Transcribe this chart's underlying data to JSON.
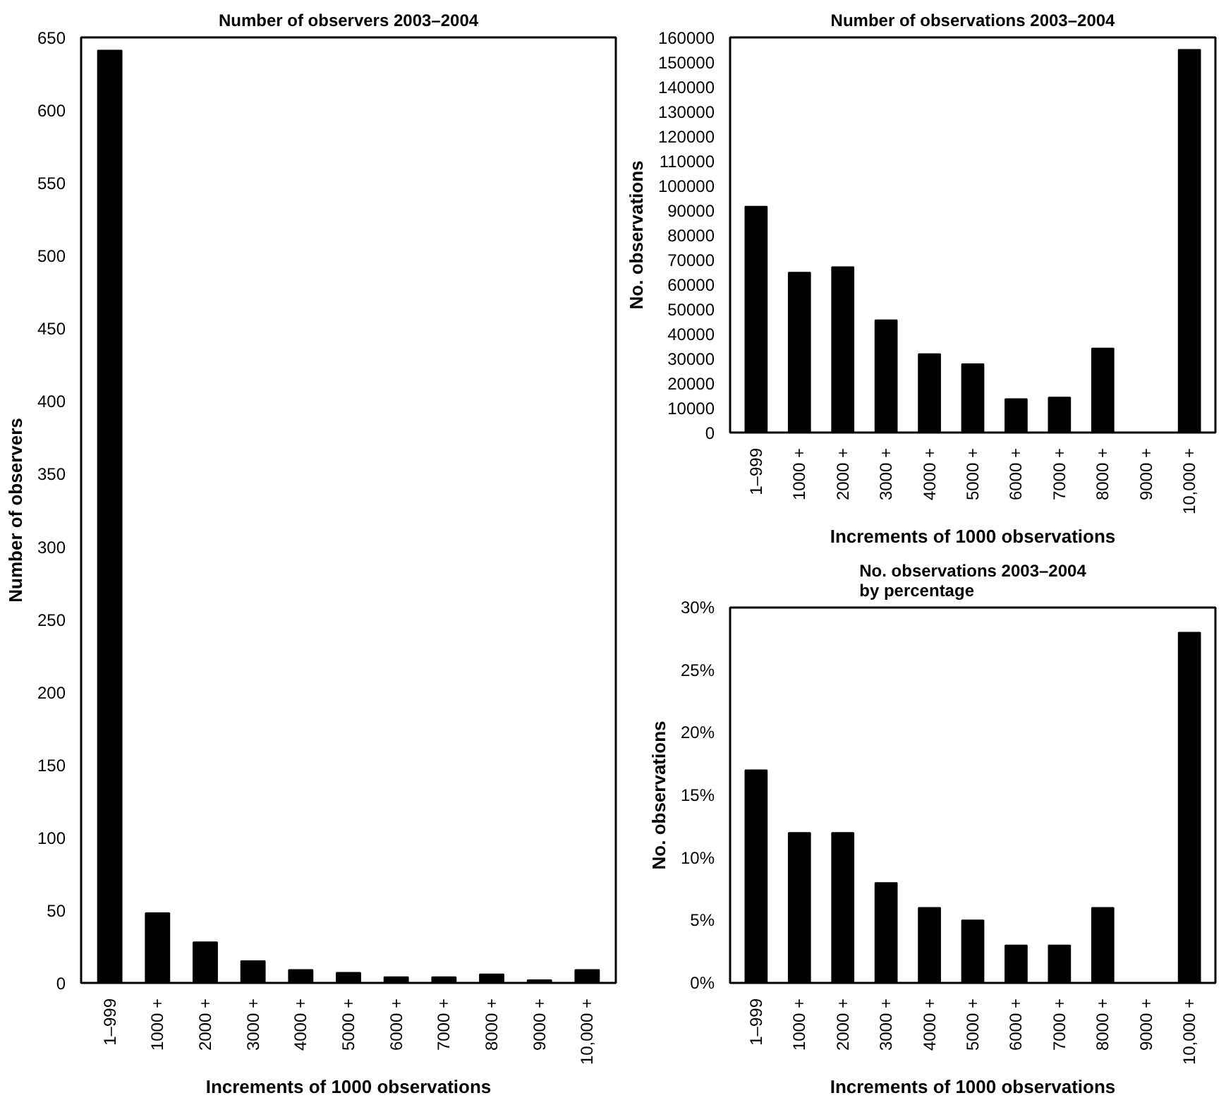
{
  "chart_data": [
    {
      "type": "bar",
      "title": "Number of observers 2003–2004",
      "xlabel": "Increments of 1000 observations",
      "ylabel": "Number of observers",
      "categories": [
        "1–999",
        "1000 +",
        "2000 +",
        "3000 +",
        "4000 +",
        "5000 +",
        "6000 +",
        "7000 +",
        "8000 +",
        "9000 +",
        "10,000 +"
      ],
      "values": [
        641,
        48,
        28,
        15,
        9,
        7,
        4,
        4,
        6,
        2,
        9
      ],
      "color": "#000000",
      "ylim": [
        0,
        650
      ],
      "yticks": [
        0,
        50,
        100,
        150,
        200,
        250,
        300,
        350,
        400,
        450,
        500,
        550,
        600,
        650
      ],
      "grid": false
    },
    {
      "type": "bar",
      "title": "Number of observations 2003–2004",
      "xlabel": "Increments of 1000 observations",
      "ylabel": "No. observations",
      "categories": [
        "1–999",
        "1000 +",
        "2000 +",
        "3000 +",
        "4000 +",
        "5000 +",
        "6000 +",
        "7000 +",
        "8000 +",
        "9000 +",
        "10,000 +"
      ],
      "values": [
        91500,
        64800,
        67000,
        45500,
        31800,
        27700,
        13600,
        14200,
        34100,
        0,
        155000
      ],
      "color": "#000000",
      "ylim": [
        0,
        160000
      ],
      "yticks": [
        0,
        10000,
        20000,
        30000,
        40000,
        50000,
        60000,
        70000,
        80000,
        90000,
        100000,
        110000,
        120000,
        130000,
        140000,
        150000,
        160000
      ],
      "grid": false
    },
    {
      "type": "bar",
      "title": "No. observations 2003–2004\nby percentage",
      "xlabel": "Increments of 1000 observations",
      "ylabel": "No. observations",
      "categories": [
        "1–999",
        "1000 +",
        "2000 +",
        "3000 +",
        "4000 +",
        "5000 +",
        "6000 +",
        "7000 +",
        "8000 +",
        "9000 +",
        "10,000 +"
      ],
      "values": [
        17,
        12,
        12,
        8,
        6,
        5,
        3,
        3,
        6,
        0,
        28
      ],
      "color": "#000000",
      "ylim": [
        0,
        30
      ],
      "yticks": [
        {
          "value": 0,
          "label": "0%"
        },
        {
          "value": 5,
          "label": "5%"
        },
        {
          "value": 10,
          "label": "10%"
        },
        {
          "value": 15,
          "label": "15%"
        },
        {
          "value": 20,
          "label": "20%"
        },
        {
          "value": 25,
          "label": "25%"
        },
        {
          "value": 30,
          "label": "30%"
        }
      ],
      "grid": false
    }
  ]
}
